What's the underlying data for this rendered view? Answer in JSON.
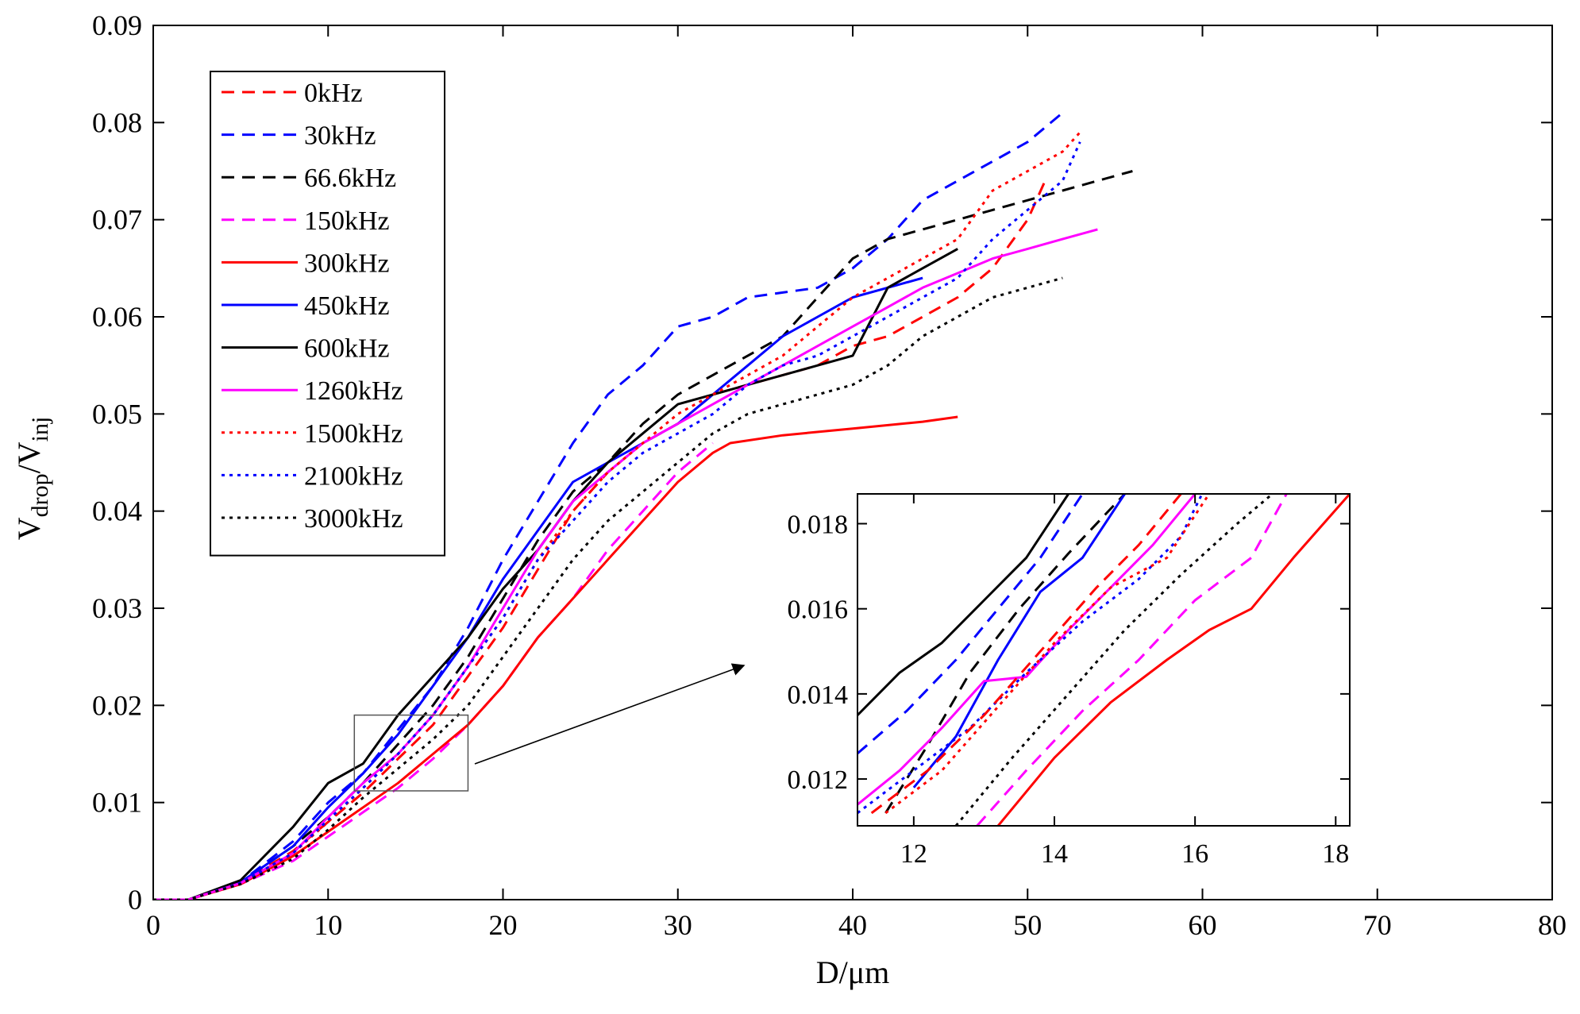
{
  "chart_data": {
    "type": "line",
    "title": "",
    "xlabel": "D/μm",
    "ylabel": {
      "base": "V",
      "sub1": "drop",
      "sep": "/V",
      "sub2": "inj"
    },
    "xlim": [
      0,
      80
    ],
    "ylim": [
      0,
      0.09
    ],
    "x_ticks": [
      0,
      10,
      20,
      30,
      40,
      50,
      60,
      70,
      80
    ],
    "y_ticks": [
      0,
      0.01,
      0.02,
      0.03,
      0.04,
      0.05,
      0.06,
      0.07,
      0.08,
      0.09
    ],
    "x_tick_labels": [
      "0",
      "10",
      "20",
      "30",
      "40",
      "50",
      "60",
      "70",
      "80"
    ],
    "y_tick_labels": [
      "0",
      "0.01",
      "0.02",
      "0.03",
      "0.04",
      "0.05",
      "0.06",
      "0.07",
      "0.08",
      "0.09"
    ],
    "grid": false,
    "legend_position": "top-left",
    "series": [
      {
        "name": "0kHz",
        "color": "#ff0000",
        "dash": "dashed",
        "x": [
          0,
          2,
          5,
          8,
          10,
          12,
          14,
          16,
          18,
          20,
          22,
          24,
          26,
          28,
          30,
          32,
          34,
          36,
          38,
          40,
          42,
          44,
          46,
          48,
          50,
          51
        ],
        "y": [
          0,
          0,
          0.0018,
          0.005,
          0.008,
          0.011,
          0.0145,
          0.018,
          0.023,
          0.028,
          0.034,
          0.04,
          0.044,
          0.047,
          0.049,
          0.052,
          0.053,
          0.054,
          0.055,
          0.057,
          0.058,
          0.06,
          0.062,
          0.065,
          0.07,
          0.074
        ]
      },
      {
        "name": "30kHz",
        "color": "#0000ff",
        "dash": "dashed",
        "x": [
          0,
          2,
          5,
          8,
          10,
          12,
          14,
          16,
          18,
          20,
          22,
          24,
          26,
          28,
          30,
          32,
          34,
          36,
          38,
          40,
          42,
          44,
          46,
          48,
          50,
          52
        ],
        "y": [
          0,
          0,
          0.0018,
          0.006,
          0.01,
          0.013,
          0.0175,
          0.022,
          0.028,
          0.035,
          0.041,
          0.047,
          0.052,
          0.055,
          0.059,
          0.06,
          0.062,
          0.0625,
          0.063,
          0.065,
          0.068,
          0.072,
          0.074,
          0.076,
          0.078,
          0.081
        ]
      },
      {
        "name": "66.6kHz",
        "color": "#000000",
        "dash": "dashed",
        "x": [
          0,
          2,
          5,
          8,
          10,
          12,
          14,
          16,
          18,
          20,
          22,
          24,
          26,
          28,
          30,
          32,
          34,
          36,
          38,
          40,
          42,
          44,
          46,
          48,
          50,
          52,
          54,
          56
        ],
        "y": [
          0,
          0,
          0.0018,
          0.0055,
          0.0085,
          0.012,
          0.016,
          0.02,
          0.025,
          0.031,
          0.037,
          0.042,
          0.045,
          0.049,
          0.052,
          0.054,
          0.056,
          0.058,
          0.062,
          0.066,
          0.068,
          0.069,
          0.07,
          0.071,
          0.072,
          0.073,
          0.074,
          0.075
        ]
      },
      {
        "name": "150kHz",
        "color": "#ff00ff",
        "dash": "dashed",
        "x": [
          0,
          2,
          5,
          8,
          10,
          12,
          14,
          16,
          18,
          20,
          22,
          24,
          26,
          28,
          30,
          32
        ],
        "y": [
          0,
          0,
          0.0016,
          0.004,
          0.0065,
          0.009,
          0.0115,
          0.0145,
          0.018,
          0.022,
          0.027,
          0.031,
          0.036,
          0.04,
          0.044,
          0.047
        ]
      },
      {
        "name": "300kHz",
        "color": "#ff0000",
        "dash": "solid",
        "x": [
          0,
          2,
          5,
          8,
          10,
          12,
          14,
          16,
          18,
          20,
          22,
          24,
          26,
          28,
          30,
          32,
          33,
          36,
          40,
          44,
          46
        ],
        "y": [
          0,
          0,
          0.0016,
          0.0045,
          0.007,
          0.0095,
          0.012,
          0.015,
          0.018,
          0.022,
          0.027,
          0.031,
          0.035,
          0.039,
          0.043,
          0.046,
          0.047,
          0.0478,
          0.0485,
          0.0492,
          0.0497
        ]
      },
      {
        "name": "450kHz",
        "color": "#0000ff",
        "dash": "solid",
        "x": [
          0,
          2,
          5,
          8,
          10,
          12,
          14,
          16,
          18,
          20,
          22,
          24,
          26,
          28,
          30,
          32,
          34,
          36,
          38,
          40,
          42,
          44
        ],
        "y": [
          0,
          0,
          0.0018,
          0.0055,
          0.0095,
          0.013,
          0.017,
          0.022,
          0.027,
          0.033,
          0.038,
          0.043,
          0.045,
          0.047,
          0.049,
          0.052,
          0.055,
          0.058,
          0.06,
          0.062,
          0.063,
          0.064
        ]
      },
      {
        "name": "600kHz",
        "color": "#000000",
        "dash": "solid",
        "x": [
          0,
          2,
          5,
          8,
          10,
          12,
          14,
          16,
          18,
          20,
          22,
          24,
          26,
          28,
          30,
          32,
          34,
          36,
          38,
          40,
          42,
          44,
          46
        ],
        "y": [
          0,
          0,
          0.002,
          0.0075,
          0.012,
          0.014,
          0.019,
          0.023,
          0.027,
          0.032,
          0.036,
          0.041,
          0.045,
          0.048,
          0.051,
          0.052,
          0.053,
          0.054,
          0.055,
          0.056,
          0.063,
          0.065,
          0.067
        ]
      },
      {
        "name": "1260kHz",
        "color": "#ff00ff",
        "dash": "solid",
        "x": [
          0,
          2,
          5,
          8,
          10,
          12,
          14,
          16,
          18,
          20,
          22,
          24,
          26,
          28,
          30,
          32,
          34,
          36,
          38,
          40,
          42,
          44,
          46,
          48,
          50,
          52,
          54
        ],
        "y": [
          0,
          0,
          0.0017,
          0.0048,
          0.0085,
          0.012,
          0.015,
          0.019,
          0.024,
          0.03,
          0.036,
          0.041,
          0.044,
          0.047,
          0.049,
          0.051,
          0.053,
          0.055,
          0.057,
          0.059,
          0.061,
          0.063,
          0.0645,
          0.066,
          0.067,
          0.068,
          0.069
        ]
      },
      {
        "name": "1500kHz",
        "color": "#ff0000",
        "dash": "dotted",
        "x": [
          0,
          2,
          5,
          8,
          10,
          12,
          14,
          16,
          18,
          20,
          22,
          24,
          26,
          28,
          30,
          32,
          34,
          36,
          38,
          40,
          42,
          44,
          46,
          48,
          50,
          52,
          53
        ],
        "y": [
          0,
          0,
          0.0017,
          0.0048,
          0.008,
          0.0115,
          0.015,
          0.019,
          0.024,
          0.029,
          0.035,
          0.04,
          0.044,
          0.047,
          0.05,
          0.052,
          0.054,
          0.056,
          0.059,
          0.062,
          0.064,
          0.066,
          0.068,
          0.073,
          0.075,
          0.077,
          0.079
        ]
      },
      {
        "name": "2100kHz",
        "color": "#0000ff",
        "dash": "dotted",
        "x": [
          0,
          2,
          5,
          8,
          10,
          12,
          14,
          16,
          18,
          20,
          22,
          24,
          26,
          28,
          30,
          32,
          34,
          36,
          38,
          40,
          42,
          44,
          46,
          48,
          50,
          52,
          53
        ],
        "y": [
          0,
          0,
          0.0017,
          0.0048,
          0.0082,
          0.0115,
          0.015,
          0.019,
          0.024,
          0.029,
          0.035,
          0.039,
          0.043,
          0.046,
          0.048,
          0.05,
          0.053,
          0.055,
          0.056,
          0.058,
          0.06,
          0.062,
          0.064,
          0.068,
          0.071,
          0.074,
          0.078
        ]
      },
      {
        "name": "3000kHz",
        "color": "#000000",
        "dash": "dotted",
        "x": [
          0,
          2,
          5,
          8,
          10,
          12,
          14,
          16,
          18,
          20,
          22,
          24,
          26,
          28,
          30,
          32,
          34,
          36,
          38,
          40,
          42,
          44,
          46,
          48,
          50,
          52
        ],
        "y": [
          0,
          0,
          0.0016,
          0.0042,
          0.0072,
          0.0105,
          0.0135,
          0.0165,
          0.02,
          0.025,
          0.03,
          0.035,
          0.039,
          0.042,
          0.045,
          0.048,
          0.05,
          0.051,
          0.052,
          0.053,
          0.055,
          0.058,
          0.06,
          0.062,
          0.063,
          0.064
        ]
      }
    ],
    "inset": {
      "source_box": {
        "xlim": [
          11.5,
          18
        ],
        "ylim": [
          0.0112,
          0.019
        ]
      },
      "xlim": [
        11.2,
        18.2
      ],
      "ylim": [
        0.0109,
        0.0187
      ],
      "x_ticks": [
        12,
        14,
        16,
        18
      ],
      "y_ticks": [
        0.012,
        0.014,
        0.016,
        0.018
      ],
      "x_tick_labels": [
        "12",
        "14",
        "16",
        "18"
      ],
      "y_tick_labels": [
        "0.012",
        "0.014",
        "0.016",
        "0.018"
      ],
      "series": [
        {
          "name": "600kHz",
          "x": [
            11.2,
            11.8,
            12.4,
            13.0,
            13.6,
            14.2
          ],
          "y": [
            0.0135,
            0.0145,
            0.0152,
            0.0162,
            0.0172,
            0.0187
          ]
        },
        {
          "name": "30kHz",
          "x": [
            11.2,
            11.9,
            12.6,
            13.2,
            13.8,
            14.4
          ],
          "y": [
            0.0126,
            0.0136,
            0.0148,
            0.016,
            0.0172,
            0.0187
          ]
        },
        {
          "name": "66.6kHz",
          "x": [
            11.6,
            12.2,
            12.8,
            13.5,
            14.2,
            15.0
          ],
          "y": [
            0.0112,
            0.0128,
            0.0145,
            0.016,
            0.0173,
            0.0187
          ]
        },
        {
          "name": "450kHz",
          "x": [
            12.0,
            12.6,
            13.2,
            13.8,
            14.4,
            15.0
          ],
          "y": [
            0.0118,
            0.013,
            0.0148,
            0.0164,
            0.0172,
            0.0187
          ]
        },
        {
          "name": "1260kHz",
          "x": [
            11.2,
            11.8,
            12.4,
            13.0,
            13.6,
            14.2,
            14.8,
            15.4,
            16.0
          ],
          "y": [
            0.0114,
            0.0122,
            0.0132,
            0.0143,
            0.0144,
            0.0155,
            0.0165,
            0.0175,
            0.0187
          ]
        },
        {
          "name": "2100kHz",
          "x": [
            11.2,
            12.0,
            12.8,
            13.6,
            14.4,
            15.2,
            15.8,
            16.1
          ],
          "y": [
            0.0112,
            0.0122,
            0.0132,
            0.0145,
            0.0157,
            0.0167,
            0.0177,
            0.0187
          ]
        },
        {
          "name": "0kHz",
          "x": [
            11.4,
            12.2,
            13.0,
            13.8,
            14.6,
            15.2,
            15.8
          ],
          "y": [
            0.0112,
            0.0122,
            0.0135,
            0.015,
            0.0165,
            0.0175,
            0.0187
          ]
        },
        {
          "name": "1500kHz",
          "x": [
            11.6,
            12.4,
            13.2,
            14.0,
            14.8,
            15.6,
            16.2
          ],
          "y": [
            0.0112,
            0.0122,
            0.0137,
            0.0152,
            0.0165,
            0.0172,
            0.0187
          ]
        },
        {
          "name": "3000kHz",
          "x": [
            12.6,
            13.4,
            14.2,
            15.0,
            15.8,
            16.6,
            17.1
          ],
          "y": [
            0.0109,
            0.0125,
            0.014,
            0.0155,
            0.0168,
            0.018,
            0.0187
          ]
        },
        {
          "name": "150kHz",
          "x": [
            12.9,
            13.6,
            14.4,
            15.2,
            16.0,
            16.8,
            17.3
          ],
          "y": [
            0.0109,
            0.0122,
            0.0136,
            0.0148,
            0.0162,
            0.0172,
            0.0187
          ]
        },
        {
          "name": "300kHz",
          "x": [
            13.2,
            14.0,
            14.8,
            15.6,
            16.2,
            16.8,
            17.4,
            18.2
          ],
          "y": [
            0.0109,
            0.0125,
            0.0138,
            0.0148,
            0.0155,
            0.016,
            0.0172,
            0.0187
          ]
        }
      ]
    }
  }
}
